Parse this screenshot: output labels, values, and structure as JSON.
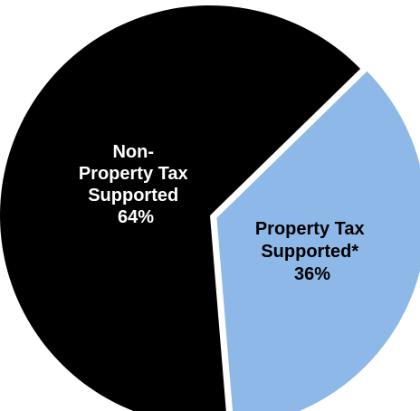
{
  "chart_data": {
    "type": "pie",
    "slices": [
      {
        "label_lines": [
          "Non-",
          "Property Tax",
          "Supported",
          "64%"
        ],
        "category": "Non-Property Tax Supported",
        "value": 64,
        "color": "#000000",
        "text_color": "#ffffff"
      },
      {
        "label_lines": [
          "Property Tax",
          "Supported*",
          "36%"
        ],
        "category": "Property Tax Supported*",
        "value": 36,
        "color": "#8db8e8",
        "text_color": "#000000"
      }
    ],
    "exploded_slice": "Property Tax Supported*"
  }
}
